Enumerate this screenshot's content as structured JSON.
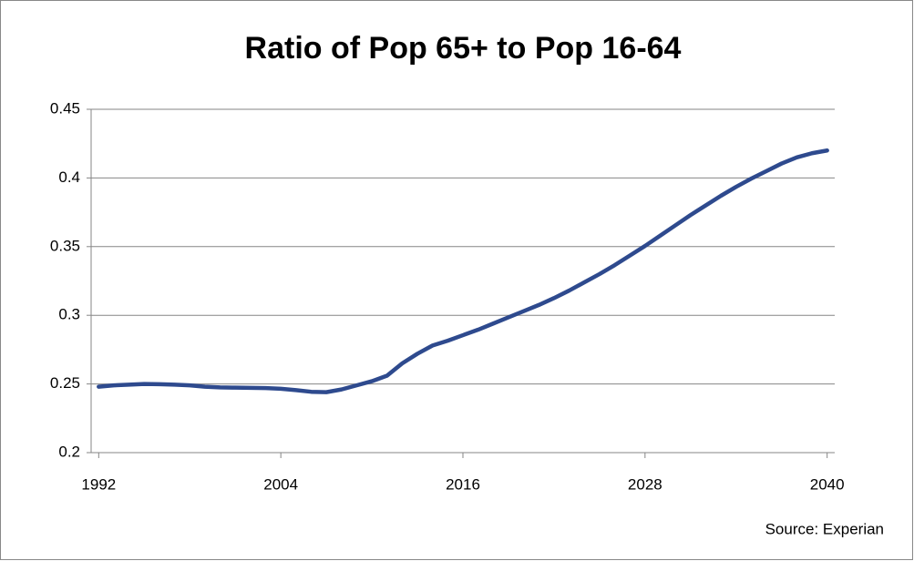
{
  "chart_data": {
    "type": "line",
    "title": "Ratio of Pop 65+ to Pop 16-64",
    "annotation": "Source: Experian",
    "x": [
      1992,
      1993,
      1994,
      1995,
      1996,
      1997,
      1998,
      1999,
      2000,
      2001,
      2002,
      2003,
      2004,
      2005,
      2006,
      2007,
      2008,
      2009,
      2010,
      2011,
      2012,
      2013,
      2014,
      2015,
      2016,
      2017,
      2018,
      2019,
      2020,
      2021,
      2022,
      2023,
      2024,
      2025,
      2026,
      2027,
      2028,
      2029,
      2030,
      2031,
      2032,
      2033,
      2034,
      2035,
      2036,
      2037,
      2038,
      2039,
      2040
    ],
    "series": [
      {
        "name": "Ratio",
        "color": "#2e4a8e",
        "values": [
          0.248,
          0.249,
          0.2495,
          0.25,
          0.2498,
          0.2495,
          0.249,
          0.248,
          0.2475,
          0.2473,
          0.2472,
          0.247,
          0.2465,
          0.2455,
          0.2443,
          0.244,
          0.246,
          0.249,
          0.252,
          0.256,
          0.265,
          0.272,
          0.278,
          0.2815,
          0.2855,
          0.2895,
          0.294,
          0.2985,
          0.303,
          0.3075,
          0.3125,
          0.318,
          0.324,
          0.33,
          0.3365,
          0.3435,
          0.3505,
          0.358,
          0.3655,
          0.373,
          0.38,
          0.387,
          0.3935,
          0.3995,
          0.405,
          0.4105,
          0.415,
          0.418,
          0.42
        ]
      }
    ],
    "xlim": [
      1991.5,
      2040.5
    ],
    "xticks": [
      1992,
      2004,
      2016,
      2028,
      2040
    ],
    "ylim": [
      0.2,
      0.45
    ],
    "yticks": [
      0.2,
      0.25,
      0.3,
      0.35,
      0.4,
      0.45
    ],
    "grid": true
  }
}
